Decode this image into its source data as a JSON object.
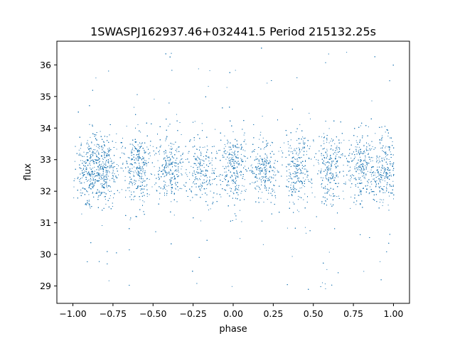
{
  "chart_data": {
    "type": "scatter",
    "title": "1SWASPJ162937.46+032441.5 Period 215132.25s",
    "xlabel": "phase",
    "ylabel": "flux",
    "xlim": [
      -1.1,
      1.1
    ],
    "ylim": [
      28.45,
      36.75
    ],
    "xticks": [
      -1.0,
      -0.75,
      -0.5,
      -0.25,
      0.0,
      0.25,
      0.5,
      0.75,
      1.0
    ],
    "xtick_labels": [
      "−1.00",
      "−0.75",
      "−0.50",
      "−0.25",
      "0.00",
      "0.25",
      "0.50",
      "0.75",
      "1.00"
    ],
    "yticks": [
      29,
      30,
      31,
      32,
      33,
      34,
      35,
      36
    ],
    "ytick_labels": [
      "29",
      "30",
      "31",
      "32",
      "33",
      "34",
      "35",
      "36"
    ],
    "grid": false,
    "point_color": "#1f77b4",
    "series": [
      {
        "x_range": [
          -1.0,
          1.0
        ],
        "mean_flux": 32.7,
        "flux_range": [
          28.9,
          36.6
        ],
        "cluster_centers": [
          -0.9,
          -0.8,
          -0.6,
          -0.4,
          -0.2,
          0.0,
          0.2,
          0.4,
          0.6,
          0.8,
          0.95
        ],
        "approx_points": 9000
      }
    ]
  }
}
